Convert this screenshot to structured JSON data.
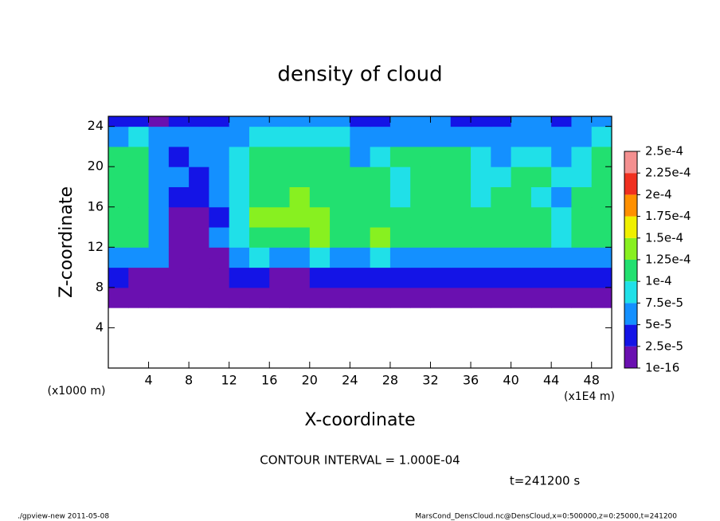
{
  "chart_data": {
    "type": "heatmap",
    "title": "density of cloud",
    "xlabel": "X-coordinate",
    "ylabel": "Z-coordinate",
    "x_unit": "(x1E4 m)",
    "y_unit": "(x1000 m)",
    "xlim": [
      0,
      50
    ],
    "ylim": [
      0,
      25
    ],
    "xticks": [
      4,
      8,
      12,
      16,
      20,
      24,
      28,
      32,
      36,
      40,
      44,
      48
    ],
    "yticks": [
      4,
      8,
      12,
      16,
      20,
      24
    ],
    "x_bins": [
      0,
      2,
      4,
      6,
      8,
      10,
      12,
      14,
      16,
      18,
      20,
      22,
      24,
      26,
      28,
      30,
      32,
      34,
      36,
      38,
      40,
      42,
      44,
      46,
      48,
      50
    ],
    "y_bins": [
      6,
      8,
      10,
      12,
      14,
      16,
      18,
      20,
      22,
      24,
      25
    ],
    "values": [
      [
        1e-05,
        1e-05,
        1e-05,
        1e-05,
        1e-05,
        1e-05,
        1e-05,
        1e-05,
        1e-05,
        1e-05,
        1e-05,
        1e-05,
        1e-05,
        1e-05,
        1e-05,
        1e-05,
        1e-05,
        1e-05,
        1e-05,
        1e-05,
        1e-05,
        1e-05,
        1e-05,
        1e-05,
        1e-05
      ],
      [
        3e-05,
        2e-05,
        1e-05,
        1e-05,
        1e-05,
        2e-05,
        3e-05,
        3e-05,
        2e-05,
        2e-05,
        3e-05,
        3e-05,
        3e-05,
        3e-05,
        3e-05,
        3e-05,
        3e-05,
        3e-05,
        3e-05,
        3e-05,
        3e-05,
        3e-05,
        3e-05,
        3e-05,
        3e-05
      ],
      [
        6e-05,
        7e-05,
        5e-05,
        2e-05,
        1e-05,
        2e-05,
        6e-05,
        8e-05,
        7e-05,
        7e-05,
        9e-05,
        6e-05,
        6e-05,
        8e-05,
        6e-05,
        6e-05,
        7e-05,
        6e-05,
        7e-05,
        6e-05,
        6e-05,
        6e-05,
        7e-05,
        7e-05,
        7e-05
      ],
      [
        0.00011,
        0.00011,
        7e-05,
        1e-05,
        1e-05,
        5e-05,
        8e-05,
        0.00012,
        0.00012,
        0.00012,
        0.00013,
        0.00012,
        0.00012,
        0.00013,
        0.00011,
        0.00012,
        0.00011,
        0.00012,
        0.00012,
        0.00012,
        0.00011,
        0.0001,
        9e-05,
        0.00012,
        0.00012
      ],
      [
        0.00011,
        0.00011,
        6e-05,
        2e-05,
        1e-05,
        4e-05,
        8e-05,
        0.00013,
        0.00013,
        0.00013,
        0.00013,
        0.00012,
        0.00012,
        0.00012,
        0.00012,
        0.00012,
        0.00012,
        0.00012,
        0.00011,
        0.00011,
        0.0001,
        0.00011,
        8e-05,
        0.00011,
        0.00012
      ],
      [
        0.00011,
        0.00011,
        5e-05,
        4e-05,
        3e-05,
        5e-05,
        8e-05,
        0.00012,
        0.00012,
        0.00013,
        0.00012,
        0.00012,
        0.00012,
        0.00012,
        8e-05,
        0.00011,
        0.00012,
        0.00011,
        8e-05,
        0.00011,
        0.00011,
        9e-05,
        7e-05,
        0.00011,
        0.00012
      ],
      [
        0.00011,
        0.00011,
        6e-05,
        5e-05,
        4e-05,
        6e-05,
        8e-05,
        0.00011,
        0.00011,
        0.00011,
        0.00011,
        0.00011,
        0.00011,
        0.00011,
        9e-05,
        0.00011,
        0.00011,
        0.00011,
        9e-05,
        8e-05,
        0.0001,
        0.0001,
        8e-05,
        8e-05,
        0.00011
      ],
      [
        0.00011,
        0.0001,
        7e-05,
        4e-05,
        6e-05,
        7e-05,
        9e-05,
        0.00011,
        0.00011,
        0.00011,
        0.00011,
        0.00011,
        7e-05,
        8e-05,
        0.0001,
        0.00011,
        0.0001,
        0.0001,
        8e-05,
        7e-05,
        8e-05,
        8e-05,
        7e-05,
        8e-05,
        0.0001
      ],
      [
        7e-05,
        8e-05,
        7e-05,
        6e-05,
        5e-05,
        6e-05,
        7e-05,
        9e-05,
        9e-05,
        9e-05,
        9e-05,
        8e-05,
        6e-05,
        7e-05,
        7e-05,
        7e-05,
        7e-05,
        7e-05,
        6e-05,
        6e-05,
        7e-05,
        7e-05,
        6e-05,
        7e-05,
        8e-05
      ],
      [
        3e-05,
        3e-05,
        2e-05,
        3e-05,
        4e-05,
        4e-05,
        5e-05,
        6e-05,
        6e-05,
        6e-05,
        6e-05,
        5e-05,
        4e-05,
        4e-05,
        5e-05,
        5e-05,
        5e-05,
        4e-05,
        4e-05,
        4e-05,
        5e-05,
        5e-05,
        4e-05,
        5e-05,
        5e-05
      ]
    ],
    "colorbar": {
      "levels": [
        {
          "value": 1e-16,
          "label": "1e-16"
        },
        {
          "value": 2.5e-05,
          "label": "2.5e-5"
        },
        {
          "value": 5e-05,
          "label": "5e-5"
        },
        {
          "value": 7.5e-05,
          "label": "7.5e-5"
        },
        {
          "value": 0.0001,
          "label": "1e-4"
        },
        {
          "value": 0.000125,
          "label": "1.25e-4"
        },
        {
          "value": 0.00015,
          "label": "1.5e-4"
        },
        {
          "value": 0.000175,
          "label": "1.75e-4"
        },
        {
          "value": 0.0002,
          "label": "2e-4"
        },
        {
          "value": 0.000225,
          "label": "2.25e-4"
        },
        {
          "value": 0.00025,
          "label": "2.5e-4"
        }
      ],
      "colors": [
        "#6a10b0",
        "#1414e6",
        "#1490ff",
        "#20e0e8",
        "#22e070",
        "#88f020",
        "#f0f000",
        "#ff9000",
        "#f03020",
        "#f49090"
      ]
    },
    "contour_interval": "CONTOUR INTERVAL = 1.000E-04",
    "time_label": "t=241200 s",
    "footer_left": "./gpview-new  2011-05-08",
    "footer_right": "MarsCond_DensCloud.nc@DensCloud,x=0:500000,z=0:25000,t=241200"
  }
}
